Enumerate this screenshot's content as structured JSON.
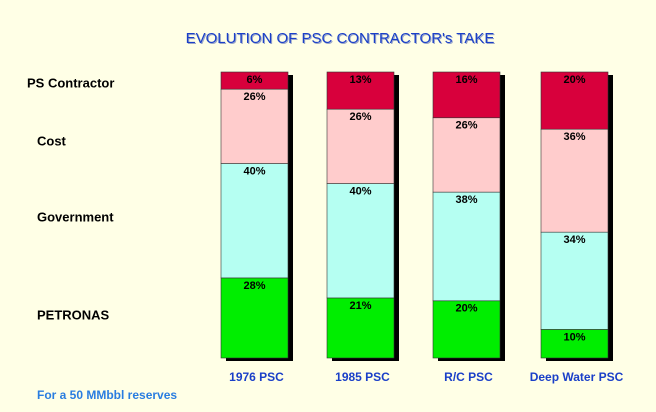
{
  "chart_data": {
    "type": "stacked_bar",
    "title": "EVOLUTION OF PSC CONTRACTOR's TAKE",
    "footnote": "For a 50 MMbbl reserves",
    "categories": [
      "1976 PSC",
      "1985 PSC",
      "R/C PSC",
      "Deep Water PSC"
    ],
    "series": [
      {
        "name": "PETRONAS",
        "color": "#00ee00",
        "values": [
          28,
          21,
          20,
          10
        ],
        "value_labels": [
          "28%",
          "21%",
          "20%",
          "10%"
        ]
      },
      {
        "name": "Government",
        "color": "#b5fff2",
        "values": [
          40,
          40,
          38,
          34
        ],
        "value_labels": [
          "40%",
          "40%",
          "38%",
          "34%"
        ]
      },
      {
        "name": "Cost",
        "color": "#ffcccc",
        "values": [
          26,
          26,
          26,
          36
        ],
        "value_labels": [
          "26%",
          "26%",
          "26%",
          "36%"
        ]
      },
      {
        "name": "PS Contractor",
        "color": "#d8003c",
        "values": [
          6,
          13,
          16,
          20
        ],
        "value_labels": [
          "6%",
          "13%",
          "16%",
          "20%"
        ]
      }
    ]
  }
}
